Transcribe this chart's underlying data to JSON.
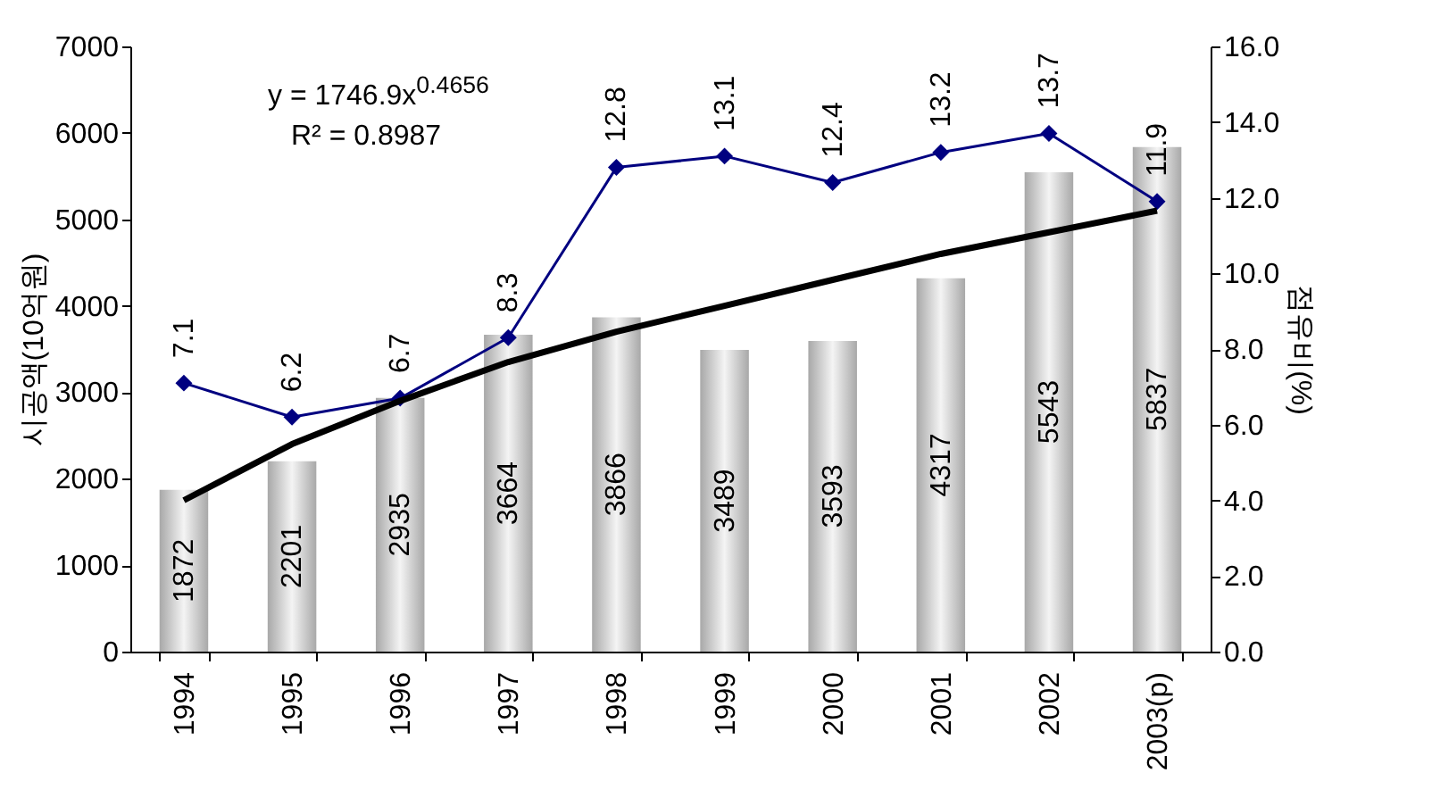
{
  "chart_data": {
    "type": "bar",
    "categories": [
      "1994",
      "1995",
      "1996",
      "1997",
      "1998",
      "1999",
      "2000",
      "2001",
      "2002",
      "2003(p)"
    ],
    "ylabel": "시공액(10억원)",
    "y2label": "점유비(%)",
    "ylim": [
      0,
      7000
    ],
    "yticks": [
      0,
      1000,
      2000,
      3000,
      4000,
      5000,
      6000,
      7000
    ],
    "y2lim": [
      0,
      16
    ],
    "y2ticks": [
      {
        "value": 0,
        "label": "0.0"
      },
      {
        "value": 2,
        "label": "2.0"
      },
      {
        "value": 4,
        "label": "4.0"
      },
      {
        "value": 6,
        "label": "6.0"
      },
      {
        "value": 8,
        "label": "8.0"
      },
      {
        "value": 10,
        "label": "10.0"
      },
      {
        "value": 12,
        "label": "12.0"
      },
      {
        "value": 14,
        "label": "14.0"
      },
      {
        "value": 16,
        "label": "16.0"
      }
    ],
    "grid": false,
    "annotations": [
      "y = 1746.9x$^{0.4656}$",
      "R² = 0.8987"
    ],
    "series": [
      {
        "color": "#a8a8a8",
        "data_labels": true,
        "values": [
          1872,
          2201,
          2935,
          3664,
          3866,
          3489,
          3593,
          4317,
          5543,
          5837
        ]
      },
      {
        "type": "line",
        "axis": "y2",
        "color": "#000080",
        "marker": "diamond",
        "line_style": "solid",
        "data_labels": true,
        "values": [
          7.1,
          6.2,
          6.7,
          8.3,
          12.8,
          13.1,
          12.4,
          13.2,
          13.7,
          11.9
        ]
      },
      {
        "type": "line",
        "color": "#000000",
        "marker": "none",
        "line_style": "solid",
        "values": [
          1750,
          2400,
          2900,
          3350,
          3700,
          4000,
          4300,
          4600,
          4850,
          5100
        ]
      }
    ]
  }
}
